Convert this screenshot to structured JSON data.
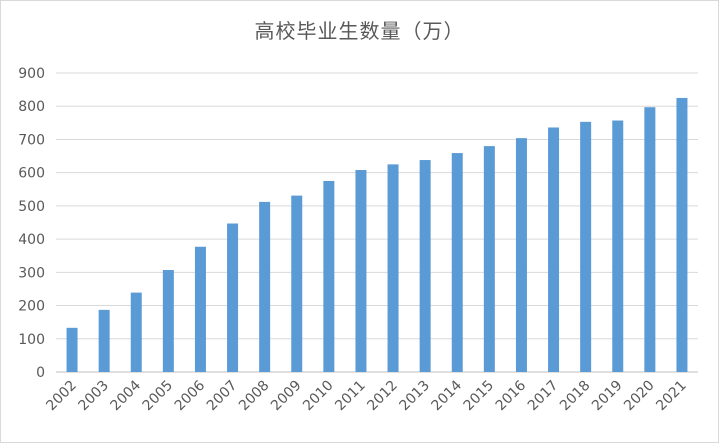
{
  "chart_data": {
    "type": "bar",
    "title": "高校毕业生数量（万）",
    "xlabel": "",
    "ylabel": "",
    "categories": [
      "2002",
      "2003",
      "2004",
      "2005",
      "2006",
      "2007",
      "2008",
      "2009",
      "2010",
      "2011",
      "2012",
      "2013",
      "2014",
      "2015",
      "2016",
      "2017",
      "2018",
      "2019",
      "2020",
      "2021"
    ],
    "values": [
      133,
      187,
      239,
      307,
      377,
      447,
      512,
      531,
      575,
      608,
      625,
      638,
      659,
      680,
      704,
      736,
      753,
      757,
      797,
      825
    ],
    "ylim": [
      0,
      900
    ],
    "yticks": [
      "0",
      "100",
      "200",
      "300",
      "400",
      "500",
      "600",
      "700",
      "800",
      "900"
    ],
    "grid": true,
    "legend": "none",
    "colors": {
      "bar": "#5b9bd5",
      "grid": "#d9d9d9",
      "axis": "#bfbfbf"
    }
  }
}
